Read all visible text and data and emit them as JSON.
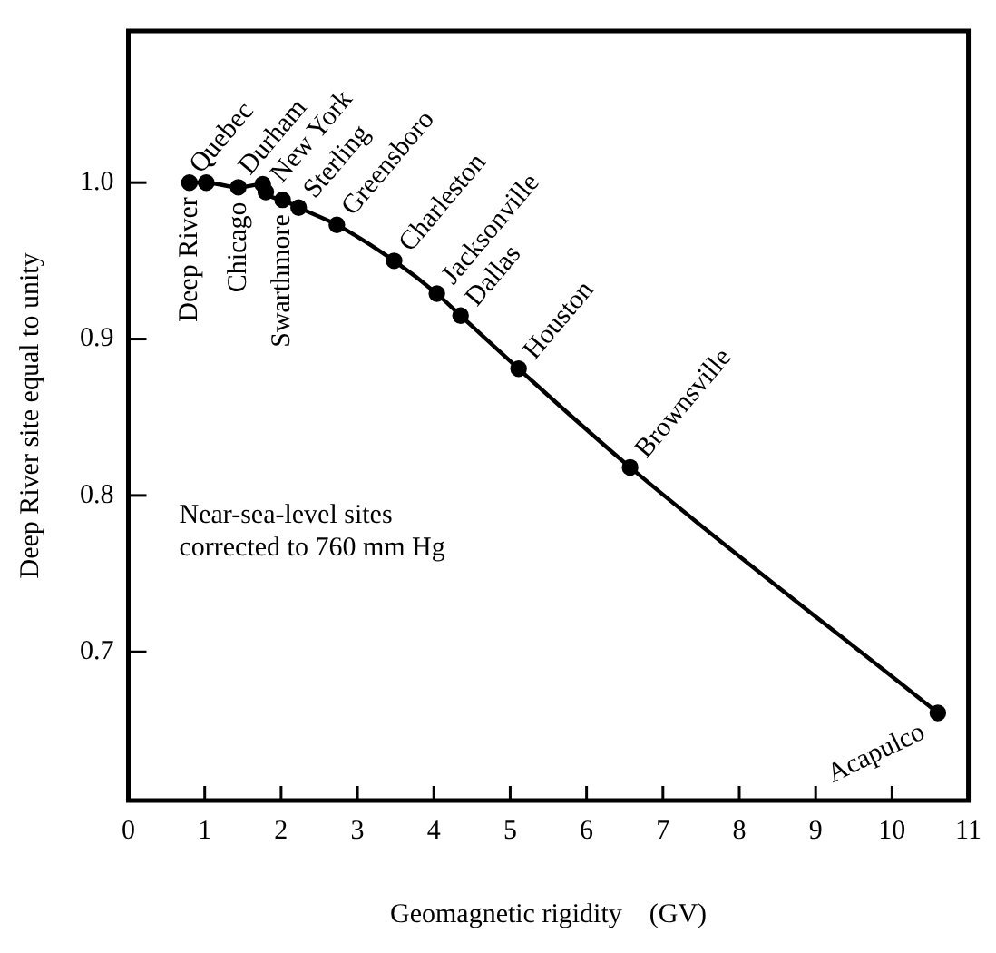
{
  "chart_data": {
    "type": "line",
    "xlabel": "Geomagnetic rigidity    (GV)",
    "ylabel": "Deep River site equal to unity",
    "x": [
      0.8,
      1.02,
      1.44,
      1.76,
      1.8,
      2.02,
      2.23,
      2.73,
      3.48,
      4.04,
      4.35,
      5.11,
      6.57,
      10.6
    ],
    "series": [
      {
        "color": "#000000",
        "values": [
          1.0,
          1.0,
          0.997,
          0.999,
          0.994,
          0.989,
          0.984,
          0.973,
          0.95,
          0.929,
          0.915,
          0.881,
          0.818,
          0.661
        ]
      }
    ],
    "xlim": [
      0,
      11
    ],
    "xticks": [
      0,
      1,
      2,
      3,
      4,
      5,
      6,
      7,
      8,
      9,
      10,
      11
    ],
    "ylim": [
      0.605,
      1.097
    ],
    "yticks": [
      {
        "value": 0.7,
        "label": "0.7"
      },
      {
        "value": 0.8,
        "label": "0.8"
      },
      {
        "value": 0.9,
        "label": "0.9"
      },
      {
        "value": 1.0,
        "label": "1.0"
      }
    ],
    "grid": false,
    "legend": false,
    "marker": "circle",
    "line_style": "solid",
    "annotations": [
      {
        "text": "Deep River",
        "x": 0.8,
        "y": 1.0
      },
      {
        "text": "Quebec",
        "x": 1.02,
        "y": 1.0
      },
      {
        "text": "Chicago",
        "x": 1.44,
        "y": 0.997
      },
      {
        "text": "Durham",
        "x": 1.76,
        "y": 0.999
      },
      {
        "text": "New York",
        "x": 1.8,
        "y": 0.994
      },
      {
        "text": "Swarthmore",
        "x": 2.02,
        "y": 0.989
      },
      {
        "text": "Sterling",
        "x": 2.23,
        "y": 0.984
      },
      {
        "text": "Greensboro",
        "x": 2.73,
        "y": 0.973
      },
      {
        "text": "Charleston",
        "x": 3.48,
        "y": 0.95
      },
      {
        "text": "Jacksonville",
        "x": 4.04,
        "y": 0.929
      },
      {
        "text": "Dallas",
        "x": 4.35,
        "y": 0.915
      },
      {
        "text": "Houston",
        "x": 5.11,
        "y": 0.881
      },
      {
        "text": "Brownsville",
        "x": 6.57,
        "y": 0.818
      },
      {
        "text": "Acapulco",
        "x": 10.6,
        "y": 0.661
      },
      "Near-sea-level sites\ncorrected to 760 mm Hg"
    ]
  }
}
